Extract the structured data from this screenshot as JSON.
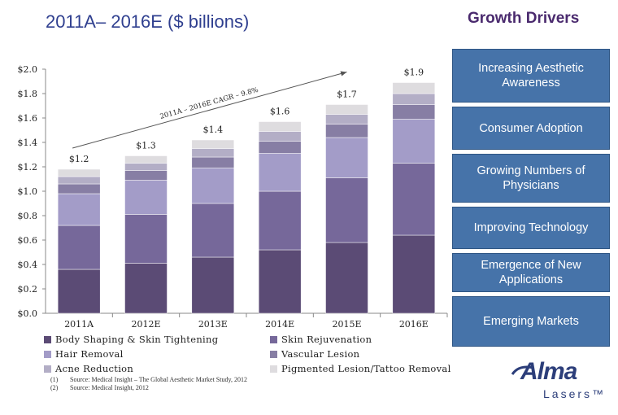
{
  "header": {
    "title": "2011A– 2016E ($ billions)"
  },
  "growth_drivers": {
    "title": "Growth Drivers",
    "items": [
      "Increasing Aesthetic Awareness",
      "Consumer Adoption",
      "Growing Numbers of Physicians",
      "Improving Technology",
      "Emergence of New Applications",
      "Emerging Markets"
    ]
  },
  "chart_data": {
    "type": "bar",
    "stacked": true,
    "categories": [
      "2011A",
      "2012E",
      "2013E",
      "2014E",
      "2015E",
      "2016E"
    ],
    "ylim": [
      0,
      2.0
    ],
    "yticks": [
      "$0.0",
      "$0.2",
      "$0.4",
      "$0.6",
      "$0.8",
      "$1.0",
      "$1.2",
      "$1.4",
      "$1.6",
      "$1.8",
      "$2.0"
    ],
    "ytick_values": [
      0,
      0.2,
      0.4,
      0.6,
      0.8,
      1.0,
      1.2,
      1.4,
      1.6,
      1.8,
      2.0
    ],
    "totals_labels": [
      "$1.2",
      "$1.3",
      "$1.4",
      "$1.6",
      "$1.7",
      "$1.9"
    ],
    "series": [
      {
        "name": "Body Shaping & Skin Tightening",
        "color": "#5b4b75",
        "values": [
          0.36,
          0.41,
          0.46,
          0.52,
          0.58,
          0.64
        ]
      },
      {
        "name": "Skin Rejuvenation",
        "color": "#76689a",
        "values": [
          0.36,
          0.4,
          0.44,
          0.48,
          0.53,
          0.59
        ]
      },
      {
        "name": "Hair Removal",
        "color": "#a39cc8",
        "values": [
          0.26,
          0.28,
          0.29,
          0.31,
          0.33,
          0.36
        ]
      },
      {
        "name": "Vascular Lesion",
        "color": "#877ea4",
        "values": [
          0.08,
          0.08,
          0.09,
          0.1,
          0.11,
          0.12
        ]
      },
      {
        "name": "Acne Reduction",
        "color": "#b3aec6",
        "values": [
          0.06,
          0.06,
          0.07,
          0.08,
          0.08,
          0.09
        ]
      },
      {
        "name": "Pigmented Lesion/Tattoo Removal",
        "color": "#dedcdf",
        "values": [
          0.06,
          0.06,
          0.07,
          0.08,
          0.08,
          0.09
        ]
      }
    ],
    "annotation": "2011A – 2016E CAGR – 9.8%",
    "grid": false,
    "legend_position": "bottom"
  },
  "footnotes": [
    {
      "num": "(1)",
      "text": "Source: Medical Insight – The Global Aesthetic Market Study, 2012"
    },
    {
      "num": "(2)",
      "text": "Source: Medical Insight, 2012"
    }
  ],
  "logo": {
    "main": "Alma",
    "sub": "Lasers™"
  }
}
